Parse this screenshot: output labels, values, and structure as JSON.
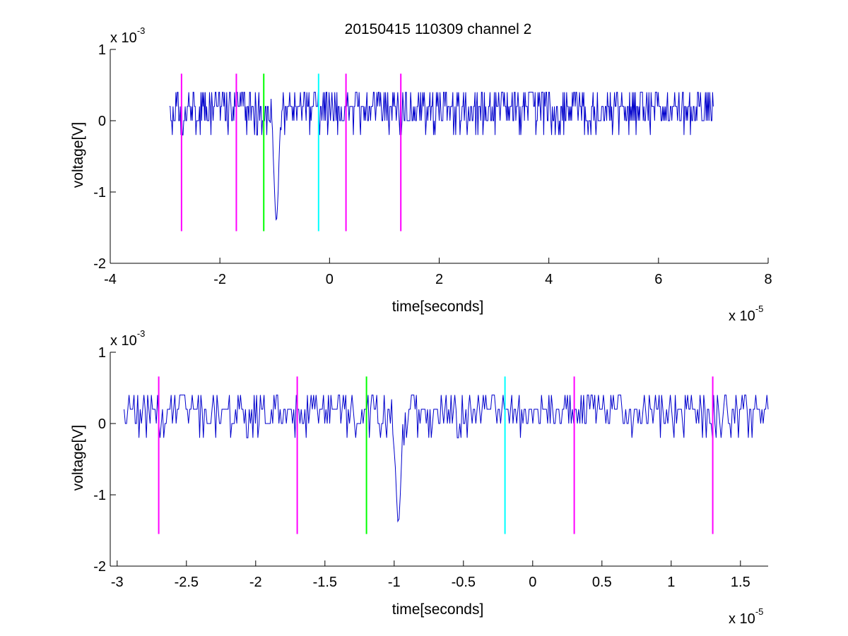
{
  "figure": {
    "title": "20150415 110309 channel 2",
    "colors": {
      "signal": "#0000cc",
      "marker_magenta": "#ff00ff",
      "marker_green": "#00ff00",
      "marker_cyan": "#00ffff",
      "axes": "#000000",
      "background": "#ffffff"
    }
  },
  "chart_data": [
    {
      "type": "line",
      "title": "20150415 110309 channel 2",
      "xlabel": "time[seconds]",
      "ylabel": "voltage[V]",
      "x_exponent_label": "x 10",
      "x_exponent": "-5",
      "y_exponent_label": "x 10",
      "y_exponent": "-3",
      "xlim": [
        -4e-05,
        8e-05
      ],
      "ylim": [
        -0.002,
        0.001
      ],
      "xticks": [
        -4e-05,
        -2e-05,
        0,
        2e-05,
        4e-05,
        6e-05,
        8e-05
      ],
      "xtick_labels": [
        "-4",
        "-2",
        "0",
        "2",
        "4",
        "6",
        "8"
      ],
      "yticks": [
        -0.002,
        -0.001,
        0,
        0.001
      ],
      "ytick_labels": [
        "-2",
        "-1",
        "0",
        "1"
      ],
      "grid": false,
      "signal": {
        "x_start": -2.92e-05,
        "x_end": 7e-05,
        "baseline_levels": [
          0.0,
          0.0002,
          0.0004
        ],
        "spike": {
          "x": -9.7e-06,
          "min": -0.0014
        }
      },
      "markers": [
        {
          "x": -2.7e-05,
          "color": "magenta",
          "y_top": 0.00066,
          "y_bottom": -0.00155
        },
        {
          "x": -1.7e-05,
          "color": "magenta",
          "y_top": 0.00066,
          "y_bottom": -0.00155
        },
        {
          "x": -1.2e-05,
          "color": "green",
          "y_top": 0.00066,
          "y_bottom": -0.00155
        },
        {
          "x": -2e-06,
          "color": "cyan",
          "y_top": 0.00066,
          "y_bottom": -0.00155
        },
        {
          "x": 3e-06,
          "color": "magenta",
          "y_top": 0.00066,
          "y_bottom": -0.00155
        },
        {
          "x": 1.3e-05,
          "color": "magenta",
          "y_top": 0.00066,
          "y_bottom": -0.00155
        }
      ]
    },
    {
      "type": "line",
      "title": "",
      "xlabel": "time[seconds]",
      "ylabel": "voltage[V]",
      "x_exponent_label": "x 10",
      "x_exponent": "-5",
      "y_exponent_label": "x 10",
      "y_exponent": "-3",
      "xlim": [
        -3.05e-05,
        1.7e-05
      ],
      "ylim": [
        -0.002,
        0.001
      ],
      "xticks": [
        -3e-05,
        -2.5e-05,
        -2e-05,
        -1.5e-05,
        -1e-05,
        -5e-06,
        0,
        5e-06,
        1e-05,
        1.5e-05
      ],
      "xtick_labels": [
        "-3",
        "-2.5",
        "-2",
        "-1.5",
        "-1",
        "-0.5",
        "0",
        "0.5",
        "1",
        "1.5"
      ],
      "yticks": [
        -0.002,
        -0.001,
        0,
        0.001
      ],
      "ytick_labels": [
        "-2",
        "-1",
        "0",
        "1"
      ],
      "grid": false,
      "signal": {
        "x_start": -2.95e-05,
        "x_end": 1.7e-05,
        "baseline_levels": [
          0.0,
          0.0002,
          0.0004
        ],
        "spike": {
          "x": -9.7e-06,
          "min": -0.0014
        }
      },
      "markers": [
        {
          "x": -2.7e-05,
          "color": "magenta",
          "y_top": 0.00066,
          "y_bottom": -0.00155
        },
        {
          "x": -1.7e-05,
          "color": "magenta",
          "y_top": 0.00066,
          "y_bottom": -0.00155
        },
        {
          "x": -1.2e-05,
          "color": "green",
          "y_top": 0.00066,
          "y_bottom": -0.00155
        },
        {
          "x": -2e-06,
          "color": "cyan",
          "y_top": 0.00066,
          "y_bottom": -0.00155
        },
        {
          "x": 3e-06,
          "color": "magenta",
          "y_top": 0.00066,
          "y_bottom": -0.00155
        },
        {
          "x": 1.3e-05,
          "color": "magenta",
          "y_top": 0.00066,
          "y_bottom": -0.00155
        }
      ]
    }
  ]
}
